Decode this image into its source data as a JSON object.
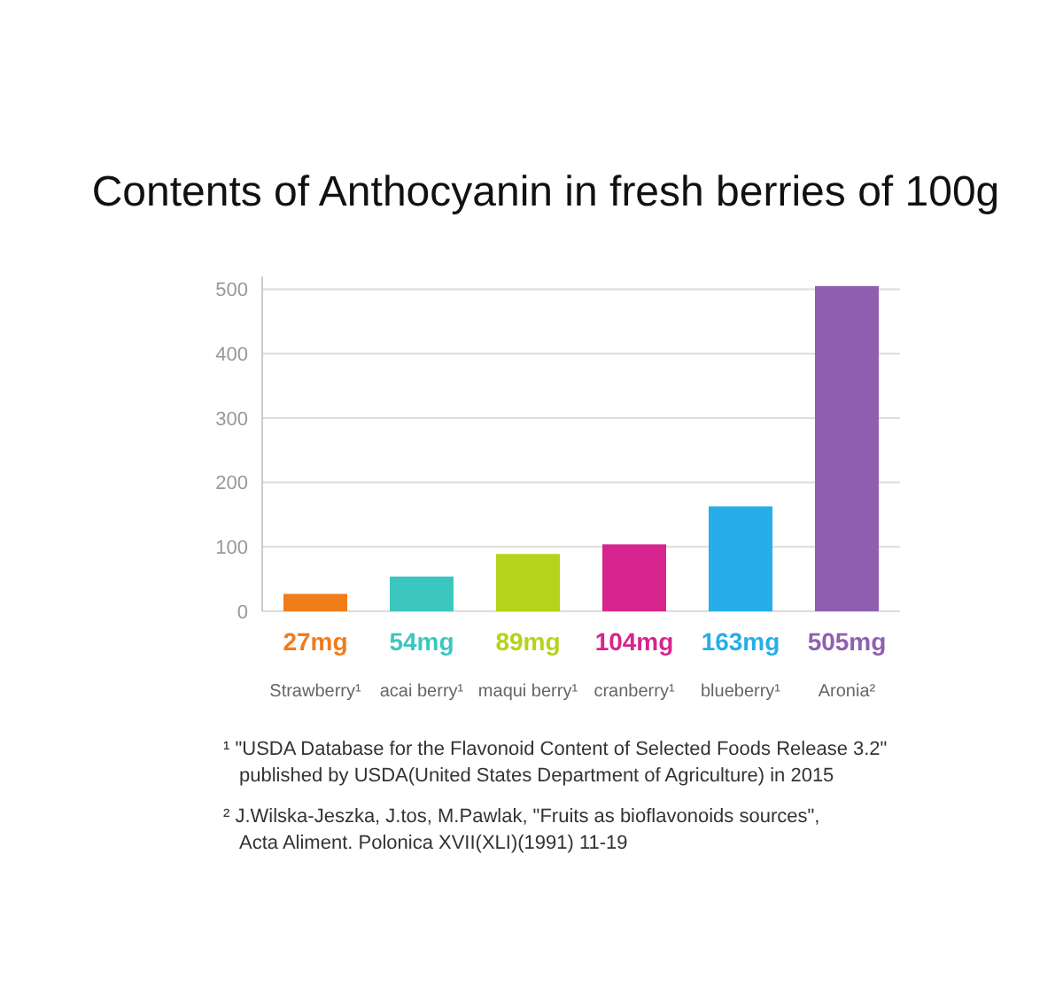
{
  "chart_data": {
    "type": "bar",
    "title": "Contents of Anthocyanin in fresh berries of 100g",
    "categories": [
      "Strawberry¹",
      "acai berry¹",
      "maqui berry¹",
      "cranberry¹",
      "blueberry¹",
      "Aronia²"
    ],
    "values": [
      27,
      54,
      89,
      104,
      163,
      505
    ],
    "colors": [
      "#f07c1a",
      "#3cc6c0",
      "#b5d31a",
      "#d6258e",
      "#27aee8",
      "#8e5fb0"
    ],
    "value_labels": [
      "27mg",
      "54mg",
      "89mg",
      "104mg",
      "163mg",
      "505mg"
    ],
    "ylim": [
      0,
      520
    ],
    "yticks": [
      0,
      100,
      200,
      300,
      400,
      500
    ],
    "grid": "y",
    "annotations": [
      "¹ \"USDA Database for the Flavonoid Content of Selected Foods Release 3.2\"\npublished by USDA(United States Department of Agriculture) in 2015",
      "² J.Wilska-Jeszka, J.tos, M.Pawlak, \"Fruits as bioflavonoids sources\",\nActa Aliment. Polonica XVII(XLI)(1991) 11-19"
    ]
  }
}
